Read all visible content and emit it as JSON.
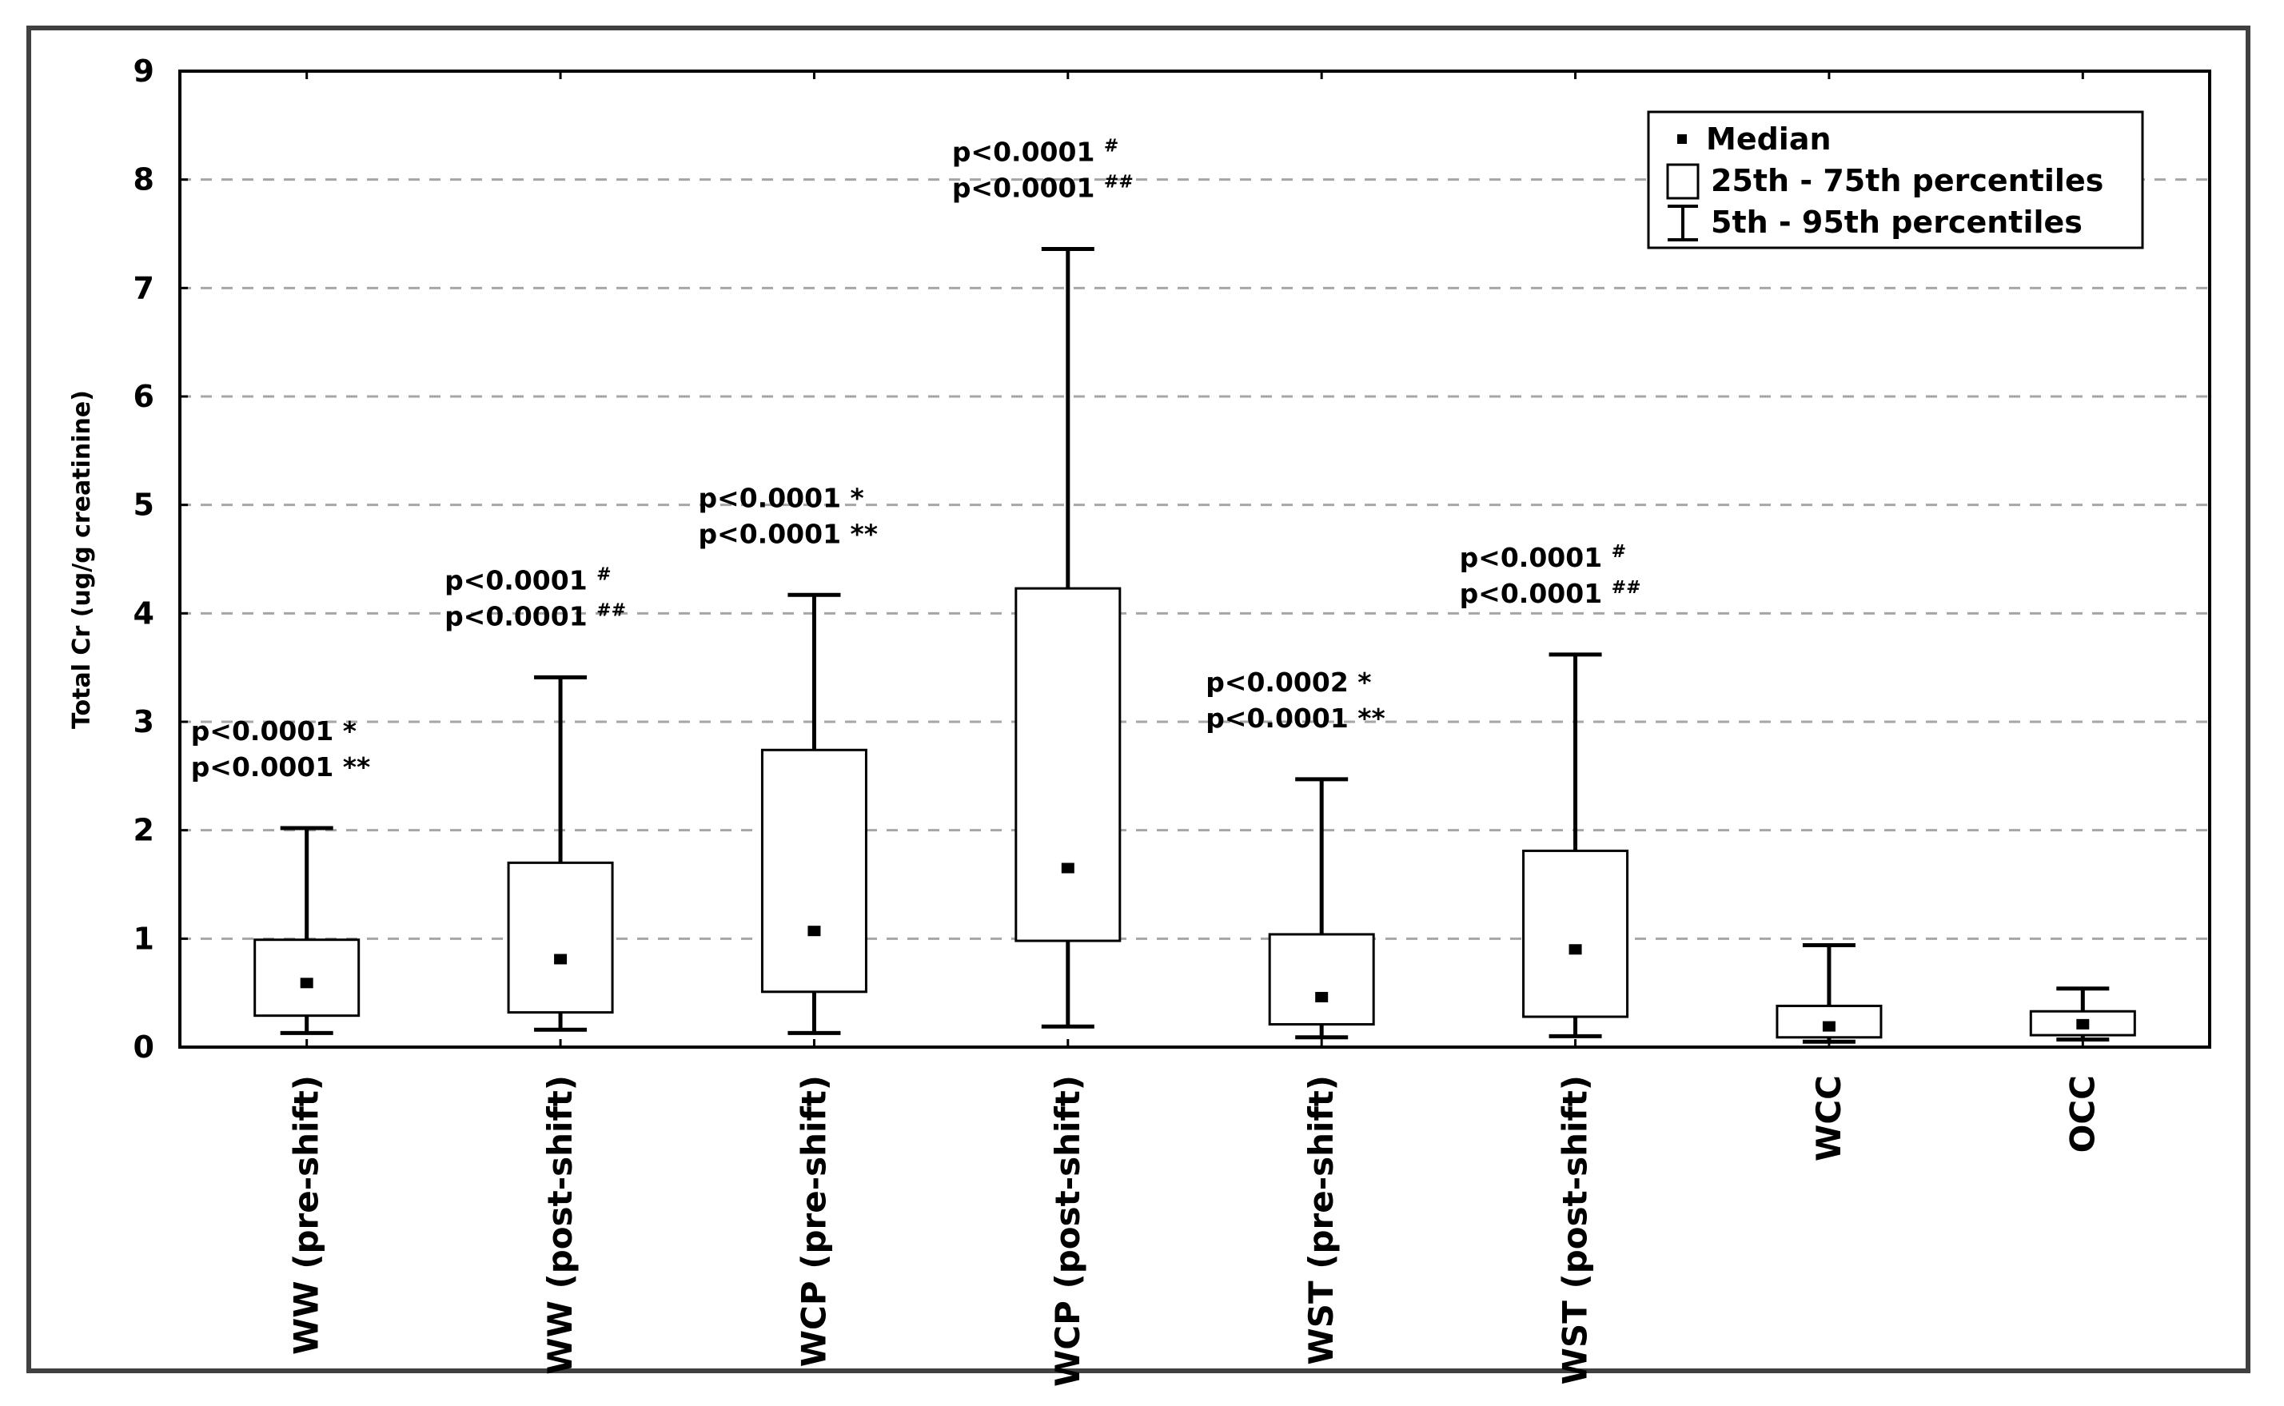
{
  "chart_data": {
    "type": "box",
    "title": "",
    "xlabel": "",
    "ylabel": "Total Cr (ug/g creatinine)",
    "ylim": [
      0,
      9
    ],
    "yticks": [
      0,
      1,
      2,
      3,
      4,
      5,
      6,
      7,
      8,
      9
    ],
    "grid": {
      "y": true,
      "style": "dashed",
      "color": "#a6a6a6"
    },
    "legend": {
      "position": "top-right",
      "entries": [
        {
          "symbol": "median-square",
          "label": "Median"
        },
        {
          "symbol": "box",
          "label": "25th - 75th percentiles"
        },
        {
          "symbol": "whisker",
          "label": "5th - 95th percentiles"
        }
      ]
    },
    "categories": [
      "WW (pre-shift)",
      "WW (post-shift)",
      "WCP (pre-shift)",
      "WCP (post-shift)",
      "WST (pre-shift)",
      "WST (post-shift)",
      "WCC",
      "OCC"
    ],
    "series": [
      {
        "name": "Total Cr",
        "boxes": [
          {
            "category": "WW (pre-shift)",
            "p5": 0.13,
            "p25": 0.29,
            "median": 0.58,
            "p75": 0.99,
            "p95": 2.02
          },
          {
            "category": "WW (post-shift)",
            "p5": 0.16,
            "p25": 0.32,
            "median": 0.8,
            "p75": 1.7,
            "p95": 3.41
          },
          {
            "category": "WCP (pre-shift)",
            "p5": 0.13,
            "p25": 0.51,
            "median": 1.06,
            "p75": 2.74,
            "p95": 4.17
          },
          {
            "category": "WCP (post-shift)",
            "p5": 0.19,
            "p25": 0.98,
            "median": 1.64,
            "p75": 4.23,
            "p95": 7.36
          },
          {
            "category": "WST (pre-shift)",
            "p5": 0.09,
            "p25": 0.21,
            "median": 0.45,
            "p75": 1.04,
            "p95": 2.47
          },
          {
            "category": "WST (post-shift)",
            "p5": 0.1,
            "p25": 0.28,
            "median": 0.89,
            "p75": 1.81,
            "p95": 3.62
          },
          {
            "category": "WCC",
            "p5": 0.05,
            "p25": 0.09,
            "median": 0.18,
            "p75": 0.38,
            "p95": 0.94
          },
          {
            "category": "OCC",
            "p5": 0.07,
            "p25": 0.11,
            "median": 0.2,
            "p75": 0.33,
            "p95": 0.54
          }
        ]
      }
    ],
    "annotations": [
      {
        "category": "WW (pre-shift)",
        "lines": [
          {
            "text": "p<0.0001",
            "mark": "*"
          },
          {
            "text": "p<0.0001",
            "mark": "**"
          }
        ]
      },
      {
        "category": "WW (post-shift)",
        "lines": [
          {
            "text": "p<0.0001",
            "mark": "#"
          },
          {
            "text": "p<0.0001",
            "mark": "##"
          }
        ]
      },
      {
        "category": "WCP (pre-shift)",
        "lines": [
          {
            "text": "p<0.0001",
            "mark": "*"
          },
          {
            "text": "p<0.0001",
            "mark": "**"
          }
        ]
      },
      {
        "category": "WCP (post-shift)",
        "lines": [
          {
            "text": "p<0.0001",
            "mark": "#"
          },
          {
            "text": "p<0.0001",
            "mark": "##"
          }
        ]
      },
      {
        "category": "WST (pre-shift)",
        "lines": [
          {
            "text": "p<0.0002",
            "mark": "*"
          },
          {
            "text": "p<0.0001",
            "mark": "**"
          }
        ]
      },
      {
        "category": "WST (post-shift)",
        "lines": [
          {
            "text": "p<0.0001",
            "mark": "#"
          },
          {
            "text": "p<0.0001",
            "mark": "##"
          }
        ]
      }
    ]
  },
  "colors": {
    "frame": "#404040",
    "axis": "#000000",
    "grid": "#a6a6a6",
    "box_fill": "#ffffff",
    "stroke": "#000000"
  }
}
